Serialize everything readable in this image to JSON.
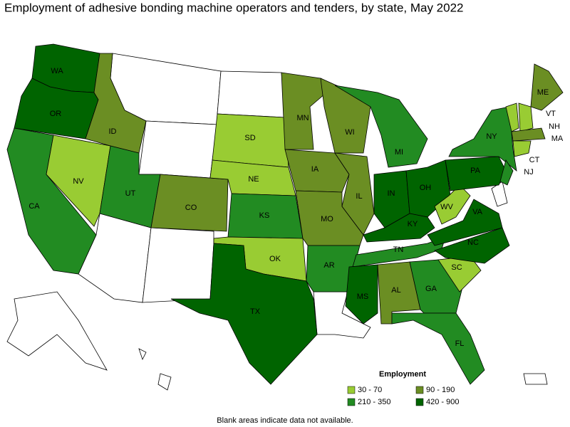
{
  "title": "Employment of adhesive bonding machine operators and tenders, by state, May 2022",
  "legend": {
    "title": "Employment",
    "entries": [
      {
        "label": "30 - 70",
        "color": "#99cc33"
      },
      {
        "label": "90 - 190",
        "color": "#6b8e23"
      },
      {
        "label": "210 - 350",
        "color": "#228b22"
      },
      {
        "label": "420 - 900",
        "color": "#006400"
      }
    ]
  },
  "states": [
    {
      "code": "WA",
      "class": 3
    },
    {
      "code": "OR",
      "class": 3
    },
    {
      "code": "CA",
      "class": 2
    },
    {
      "code": "NV",
      "class": 0
    },
    {
      "code": "ID",
      "class": 1
    },
    {
      "code": "UT",
      "class": 2
    },
    {
      "code": "CO",
      "class": 1
    },
    {
      "code": "SD",
      "class": 0
    },
    {
      "code": "NE",
      "class": 0
    },
    {
      "code": "KS",
      "class": 2
    },
    {
      "code": "OK",
      "class": 0
    },
    {
      "code": "TX",
      "class": 3
    },
    {
      "code": "MN",
      "class": 1
    },
    {
      "code": "IA",
      "class": 1
    },
    {
      "code": "MO",
      "class": 1
    },
    {
      "code": "AR",
      "class": 2
    },
    {
      "code": "WI",
      "class": 1
    },
    {
      "code": "IL",
      "class": 1
    },
    {
      "code": "MI",
      "class": 2
    },
    {
      "code": "IN",
      "class": 3
    },
    {
      "code": "OH",
      "class": 3
    },
    {
      "code": "KY",
      "class": 3
    },
    {
      "code": "TN",
      "class": 2
    },
    {
      "code": "MS",
      "class": 3
    },
    {
      "code": "AL",
      "class": 1
    },
    {
      "code": "GA",
      "class": 2
    },
    {
      "code": "FL",
      "class": 2
    },
    {
      "code": "SC",
      "class": 0
    },
    {
      "code": "NC",
      "class": 3
    },
    {
      "code": "VA",
      "class": 3
    },
    {
      "code": "WV",
      "class": 0
    },
    {
      "code": "PA",
      "class": 3
    },
    {
      "code": "NY",
      "class": 2
    },
    {
      "code": "NJ",
      "class": 2
    },
    {
      "code": "ME",
      "class": 1
    },
    {
      "code": "VT",
      "class": 0
    },
    {
      "code": "NH",
      "class": 0
    },
    {
      "code": "MA",
      "class": 1
    },
    {
      "code": "CT",
      "class": 0
    }
  ],
  "note": "Blank areas indicate data not available."
}
